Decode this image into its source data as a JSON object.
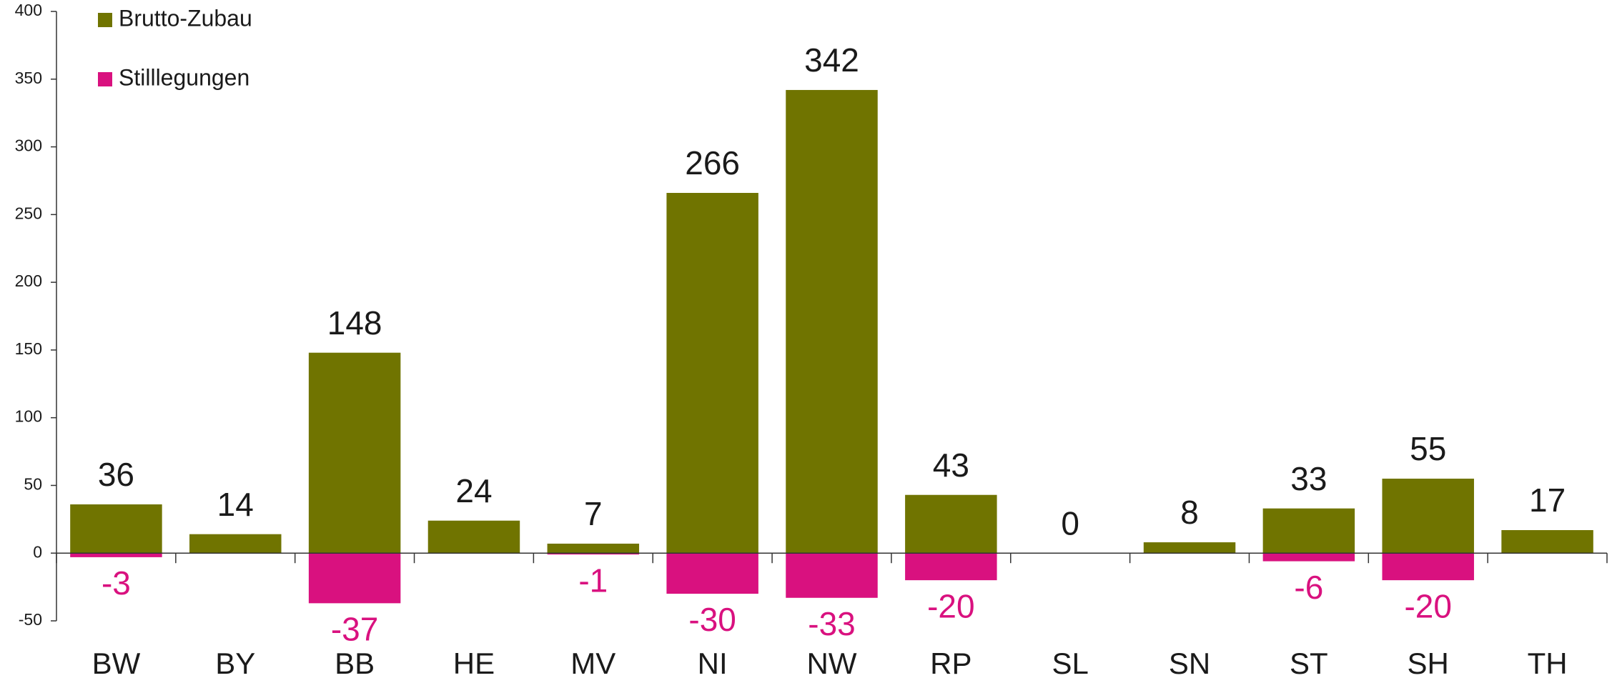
{
  "chart_data": {
    "type": "bar",
    "categories": [
      "BW",
      "BY",
      "BB",
      "HE",
      "MV",
      "NI",
      "NW",
      "RP",
      "SL",
      "SN",
      "ST",
      "SH",
      "TH"
    ],
    "series": [
      {
        "name": "Brutto-Zubau",
        "color": "#707400",
        "values": [
          36,
          14,
          148,
          24,
          7,
          266,
          342,
          43,
          0,
          8,
          33,
          55,
          17
        ]
      },
      {
        "name": "Stilllegungen",
        "color": "#d9117f",
        "values": [
          -3,
          null,
          -37,
          null,
          -1,
          -30,
          -33,
          -20,
          null,
          null,
          -6,
          -20,
          null
        ]
      }
    ],
    "ylim": [
      -50,
      400
    ],
    "yticks": [
      -50,
      0,
      50,
      100,
      150,
      200,
      250,
      300,
      350,
      400
    ],
    "legend": "top-left",
    "grid": false
  }
}
